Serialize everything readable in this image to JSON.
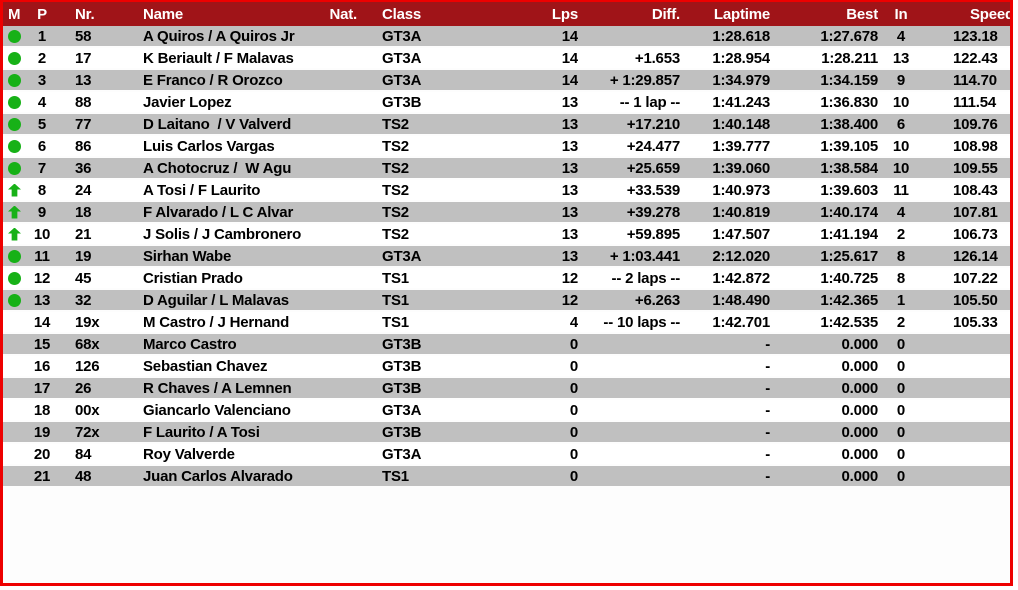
{
  "colors": {
    "border_red": "#ee0000",
    "header_bg": "#a01418",
    "header_text": "#ffffff",
    "row_gray": "#c0c0c0",
    "row_white": "#ffffff",
    "text": "#000000",
    "status_green": "#17b117"
  },
  "table": {
    "columns": [
      {
        "key": "mark",
        "label": "M"
      },
      {
        "key": "pos",
        "label": "P"
      },
      {
        "key": "nr",
        "label": "Nr."
      },
      {
        "key": "name",
        "label": "Name"
      },
      {
        "key": "nat",
        "label": "Nat."
      },
      {
        "key": "class",
        "label": "Class"
      },
      {
        "key": "lps",
        "label": "Lps"
      },
      {
        "key": "diff",
        "label": "Diff."
      },
      {
        "key": "laptime",
        "label": "Laptime"
      },
      {
        "key": "best",
        "label": "Best"
      },
      {
        "key": "in",
        "label": "In"
      },
      {
        "key": "speed",
        "label": "Speed"
      }
    ],
    "rows": [
      {
        "mark": "circle",
        "pos": "1",
        "nr": "58",
        "name": "A Quiros / A Quiros Jr",
        "nat": "",
        "class": "GT3A",
        "lps": "14",
        "diff": "",
        "laptime": "1:28.618",
        "best": "1:27.678",
        "in": "4",
        "speed": "123.18"
      },
      {
        "mark": "circle",
        "pos": "2",
        "nr": "17",
        "name": "K Beriault / F Malavas",
        "nat": "",
        "class": "GT3A",
        "lps": "14",
        "diff": "+1.653",
        "laptime": "1:28.954",
        "best": "1:28.211",
        "in": "13",
        "speed": "122.43"
      },
      {
        "mark": "circle",
        "pos": "3",
        "nr": "13",
        "name": "E Franco / R Orozco",
        "nat": "",
        "class": "GT3A",
        "lps": "14",
        "diff": "+ 1:29.857",
        "laptime": "1:34.979",
        "best": "1:34.159",
        "in": "9",
        "speed": "114.70"
      },
      {
        "mark": "circle",
        "pos": "4",
        "nr": "88",
        "name": "Javier Lopez",
        "nat": "",
        "class": "GT3B",
        "lps": "13",
        "diff": "-- 1 lap --",
        "laptime": "1:41.243",
        "best": "1:36.830",
        "in": "10",
        "speed": "111.54"
      },
      {
        "mark": "circle",
        "pos": "5",
        "nr": "77",
        "name": "D Laitano  / V Valverd",
        "nat": "",
        "class": "TS2",
        "lps": "13",
        "diff": "+17.210",
        "laptime": "1:40.148",
        "best": "1:38.400",
        "in": "6",
        "speed": "109.76"
      },
      {
        "mark": "circle",
        "pos": "6",
        "nr": "86",
        "name": "Luis Carlos Vargas",
        "nat": "",
        "class": "TS2",
        "lps": "13",
        "diff": "+24.477",
        "laptime": "1:39.777",
        "best": "1:39.105",
        "in": "10",
        "speed": "108.98"
      },
      {
        "mark": "circle",
        "pos": "7",
        "nr": "36",
        "name": "A Chotocruz /  W Agu",
        "nat": "",
        "class": "TS2",
        "lps": "13",
        "diff": "+25.659",
        "laptime": "1:39.060",
        "best": "1:38.584",
        "in": "10",
        "speed": "109.55"
      },
      {
        "mark": "up",
        "pos": "8",
        "nr": "24",
        "name": "A Tosi / F Laurito",
        "nat": "",
        "class": "TS2",
        "lps": "13",
        "diff": "+33.539",
        "laptime": "1:40.973",
        "best": "1:39.603",
        "in": "11",
        "speed": "108.43"
      },
      {
        "mark": "up",
        "pos": "9",
        "nr": "18",
        "name": "F Alvarado / L C Alvar",
        "nat": "",
        "class": "TS2",
        "lps": "13",
        "diff": "+39.278",
        "laptime": "1:40.819",
        "best": "1:40.174",
        "in": "4",
        "speed": "107.81"
      },
      {
        "mark": "up",
        "pos": "10",
        "nr": "21",
        "name": "J Solis / J Cambronero",
        "nat": "",
        "class": "TS2",
        "lps": "13",
        "diff": "+59.895",
        "laptime": "1:47.507",
        "best": "1:41.194",
        "in": "2",
        "speed": "106.73"
      },
      {
        "mark": "circle",
        "pos": "11",
        "nr": "19",
        "name": "Sirhan Wabe",
        "nat": "",
        "class": "GT3A",
        "lps": "13",
        "diff": "+ 1:03.441",
        "laptime": "2:12.020",
        "best": "1:25.617",
        "in": "8",
        "speed": "126.14"
      },
      {
        "mark": "circle",
        "pos": "12",
        "nr": "45",
        "name": "Cristian Prado",
        "nat": "",
        "class": "TS1",
        "lps": "12",
        "diff": "-- 2 laps --",
        "laptime": "1:42.872",
        "best": "1:40.725",
        "in": "8",
        "speed": "107.22"
      },
      {
        "mark": "circle",
        "pos": "13",
        "nr": "32",
        "name": "D Aguilar / L Malavas",
        "nat": "",
        "class": "TS1",
        "lps": "12",
        "diff": "+6.263",
        "laptime": "1:48.490",
        "best": "1:42.365",
        "in": "1",
        "speed": "105.50"
      },
      {
        "mark": "none",
        "pos": "14",
        "nr": "19x",
        "name": "M Castro / J Hernand",
        "nat": "",
        "class": "TS1",
        "lps": "4",
        "diff": "-- 10 laps --",
        "laptime": "1:42.701",
        "best": "1:42.535",
        "in": "2",
        "speed": "105.33"
      },
      {
        "mark": "none",
        "pos": "15",
        "nr": "68x",
        "name": "Marco Castro",
        "nat": "",
        "class": "GT3B",
        "lps": "0",
        "diff": "",
        "laptime": "-",
        "best": "0.000",
        "in": "0",
        "speed": ""
      },
      {
        "mark": "none",
        "pos": "16",
        "nr": "126",
        "name": "Sebastian Chavez",
        "nat": "",
        "class": "GT3B",
        "lps": "0",
        "diff": "",
        "laptime": "-",
        "best": "0.000",
        "in": "0",
        "speed": ""
      },
      {
        "mark": "none",
        "pos": "17",
        "nr": "26",
        "name": "R Chaves / A Lemnen",
        "nat": "",
        "class": "GT3B",
        "lps": "0",
        "diff": "",
        "laptime": "-",
        "best": "0.000",
        "in": "0",
        "speed": ""
      },
      {
        "mark": "none",
        "pos": "18",
        "nr": "00x",
        "name": "Giancarlo Valenciano",
        "nat": "",
        "class": "GT3A",
        "lps": "0",
        "diff": "",
        "laptime": "-",
        "best": "0.000",
        "in": "0",
        "speed": ""
      },
      {
        "mark": "none",
        "pos": "19",
        "nr": "72x",
        "name": "F Laurito / A Tosi",
        "nat": "",
        "class": "GT3B",
        "lps": "0",
        "diff": "",
        "laptime": "-",
        "best": "0.000",
        "in": "0",
        "speed": ""
      },
      {
        "mark": "none",
        "pos": "20",
        "nr": "84",
        "name": "Roy Valverde",
        "nat": "",
        "class": "GT3A",
        "lps": "0",
        "diff": "",
        "laptime": "-",
        "best": "0.000",
        "in": "0",
        "speed": ""
      },
      {
        "mark": "none",
        "pos": "21",
        "nr": "48",
        "name": "Juan Carlos Alvarado",
        "nat": "",
        "class": "TS1",
        "lps": "0",
        "diff": "",
        "laptime": "-",
        "best": "0.000",
        "in": "0",
        "speed": ""
      }
    ]
  }
}
